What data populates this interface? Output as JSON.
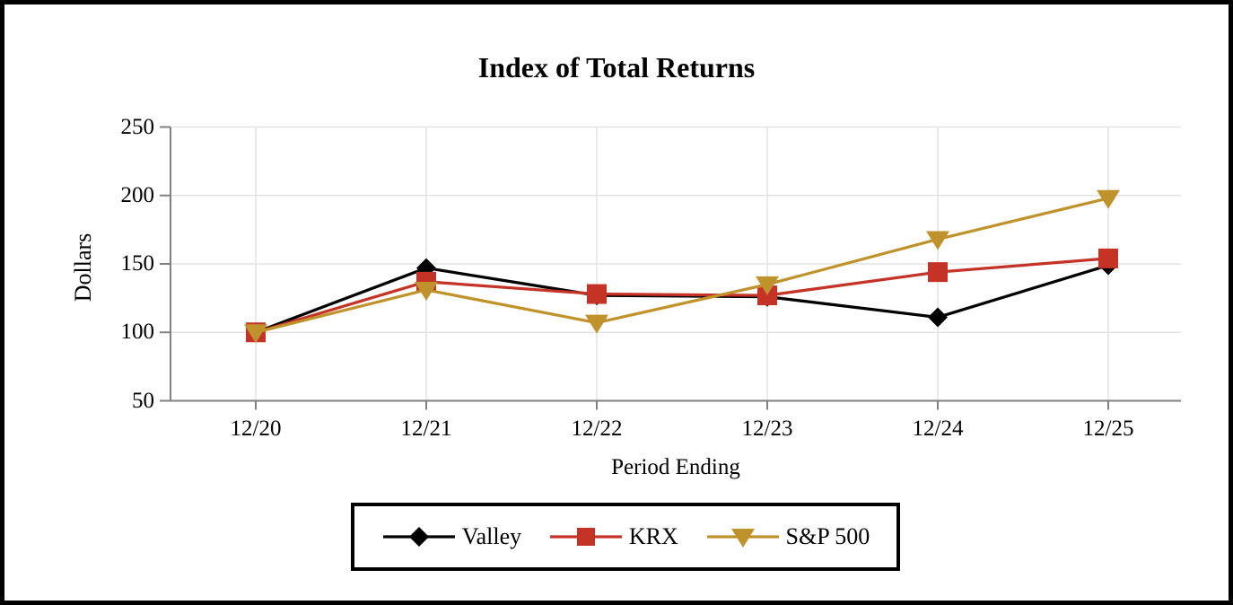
{
  "chart_data": {
    "type": "line",
    "title": "Index of Total Returns",
    "xlabel": "Period Ending",
    "ylabel": "Dollars",
    "categories": [
      "12/20",
      "12/21",
      "12/22",
      "12/23",
      "12/24",
      "12/25"
    ],
    "series": [
      {
        "name": "Valley",
        "color": "#000000",
        "marker": "diamond",
        "values": [
          100,
          147,
          127,
          126,
          111,
          149
        ]
      },
      {
        "name": "KRX",
        "color": "#C53327",
        "marker": "square",
        "values": [
          100,
          137,
          128,
          127,
          144,
          154
        ]
      },
      {
        "name": "S&P 500",
        "color": "#C0922B",
        "marker": "triangle-down",
        "values": [
          100,
          131,
          107,
          135,
          168,
          198
        ]
      }
    ],
    "ylim": [
      50,
      250
    ],
    "yticks": [
      50,
      100,
      150,
      200,
      250
    ],
    "grid": true,
    "legend_position": "bottom",
    "axis_color": "#808080",
    "grid_color": "#E3E3E3",
    "background_color": "#FFFFFF",
    "border_color": "#000000"
  }
}
